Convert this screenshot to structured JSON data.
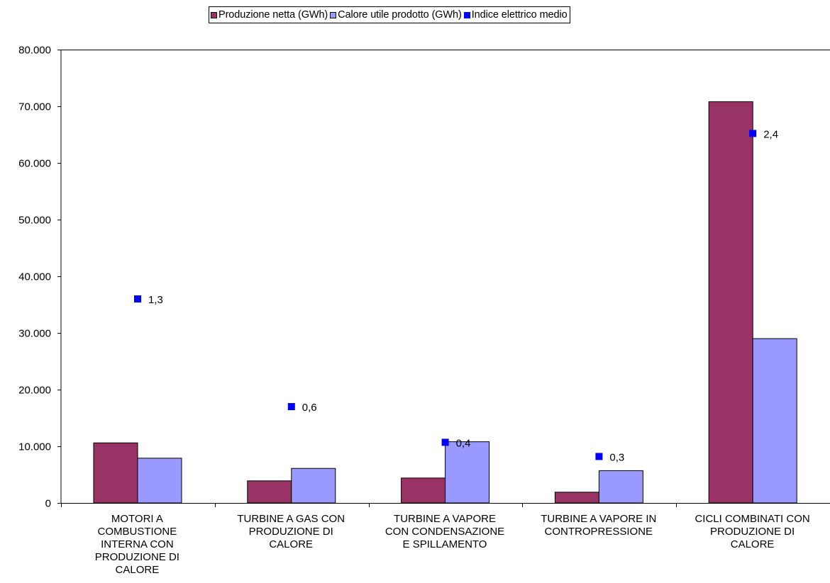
{
  "chart_data": {
    "type": "bar",
    "title": "",
    "xlabel": "",
    "ylabel": "",
    "ylim": [
      0,
      80000
    ],
    "yticks": [
      0,
      10000,
      20000,
      30000,
      40000,
      50000,
      60000,
      70000,
      80000
    ],
    "ytick_labels": [
      "0",
      "10.000",
      "20.000",
      "30.000",
      "40.000",
      "50.000",
      "60.000",
      "70.000",
      "80.000"
    ],
    "grid": false,
    "legend_position": "top-center",
    "categories": [
      [
        "MOTORI A",
        "COMBUSTIONE",
        "INTERNA CON",
        "PRODUZIONE DI",
        "CALORE"
      ],
      [
        "TURBINE A GAS CON",
        "PRODUZIONE DI",
        "CALORE"
      ],
      [
        "TURBINE A VAPORE",
        "CON CONDENSAZIONE",
        "E SPILLAMENTO"
      ],
      [
        "TURBINE A VAPORE IN",
        "CONTROPRESSIONE"
      ],
      [
        "CICLI COMBINATI CON",
        "PRODUZIONE DI",
        "CALORE"
      ]
    ],
    "series": [
      {
        "name": "Produzione netta (GWh)",
        "kind": "bar",
        "color": "#993366",
        "values": [
          10600,
          3900,
          4400,
          1900,
          70800
        ]
      },
      {
        "name": "Calore utile prodotto (GWh)",
        "kind": "bar",
        "color": "#9999ff",
        "values": [
          7900,
          6100,
          10800,
          5700,
          29000
        ]
      },
      {
        "name": "Indice elettrico medio",
        "kind": "marker",
        "color": "#0000ff",
        "values": [
          1.3,
          0.6,
          0.4,
          0.3,
          2.4
        ],
        "labels": [
          "1,3",
          "0,6",
          "0,4",
          "0,3",
          "2,4"
        ],
        "plot_y_values": [
          36000,
          17000,
          10700,
          8200,
          65200
        ]
      }
    ]
  }
}
